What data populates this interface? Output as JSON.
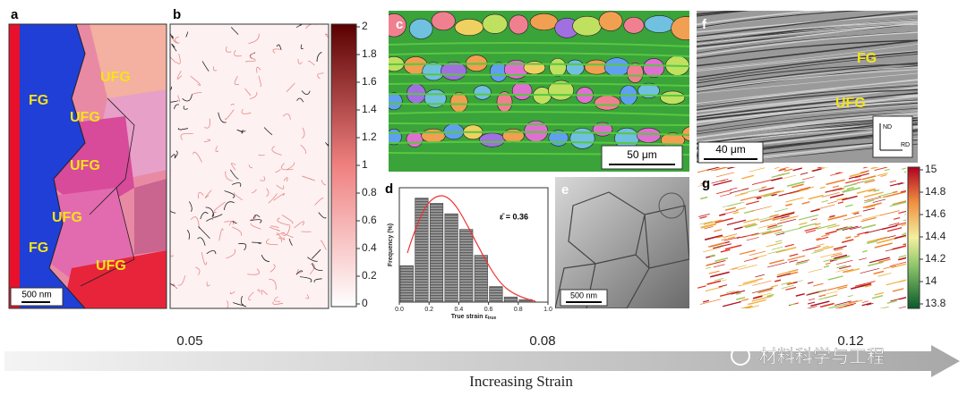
{
  "panels": {
    "a": {
      "label": "a",
      "regions": [
        "FG",
        "UFG",
        "UFG",
        "UFG",
        "UFG",
        "FG",
        "UFG"
      ],
      "scale_bar": "500 nm"
    },
    "b": {
      "label": "b",
      "colorbar_ticks": [
        0,
        0.2,
        0.4,
        0.6,
        0.8,
        1,
        1.2,
        1.4,
        1.6,
        1.8,
        2
      ]
    },
    "c": {
      "label": "c",
      "scale_bar": "50 μm"
    },
    "d": {
      "label": "d",
      "ylabel": "Frequency (%)",
      "xlabel": "True strain ε",
      "xlabel_sub": "true",
      "mean_label": "ε̄ = 0.36",
      "bins": [
        0,
        0.1,
        0.2,
        0.3,
        0.4,
        0.5,
        0.6,
        0.7,
        0.8,
        0.9
      ],
      "values": [
        7,
        20,
        19,
        17,
        14,
        9,
        3,
        1,
        0.5
      ],
      "xlim": [
        0,
        1
      ],
      "ylim": [
        0,
        22
      ],
      "xticks": [
        {
          "value": 0,
          "label": "0.0"
        },
        0.2,
        0.4,
        0.6,
        0.8,
        {
          "value": 1,
          "label": "1.0"
        }
      ]
    },
    "e": {
      "label": "e",
      "scale_bar": "500 nm"
    },
    "f": {
      "label": "f",
      "regions": [
        "FG",
        "UFG"
      ],
      "scale_bar": "40 μm",
      "axes": [
        "ND",
        "RD"
      ]
    },
    "g": {
      "label": "g",
      "colorbar_ticks": [
        13.8,
        14,
        14.2,
        14.4,
        14.6,
        14.8,
        15
      ]
    }
  },
  "strain_levels": [
    "0.05",
    "0.08",
    "0.12"
  ],
  "arrow_label": "Increasing Strain",
  "watermark": "材料科学与工程"
}
